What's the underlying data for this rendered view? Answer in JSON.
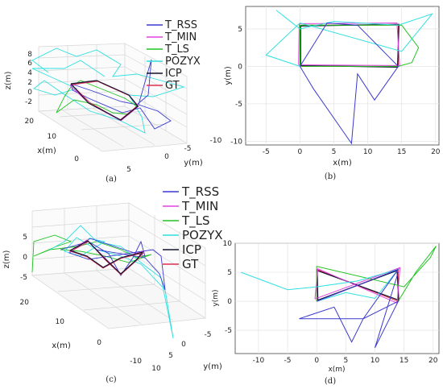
{
  "figure": {
    "captions": [
      "(a)",
      "(b)",
      "(c)",
      "(d)"
    ]
  },
  "legend_entries": [
    {
      "name": "T_RSS",
      "color": "#3a3ad0"
    },
    {
      "name": "T_MIN",
      "color": "#e040e0"
    },
    {
      "name": "T_LS",
      "color": "#22c422"
    },
    {
      "name": "POZYX",
      "color": "#2ee0e0"
    },
    {
      "name": "ICP",
      "color": "#151530"
    },
    {
      "name": "GT",
      "color": "#e03050"
    }
  ],
  "chart_data": [
    {
      "id": "a",
      "type": "line",
      "projection": "3d",
      "caption": "(a)",
      "xlabel": "x(m)",
      "ylabel": "y(m)",
      "zlabel": "z(m)",
      "x_ticks": [
        "20",
        "10",
        "0"
      ],
      "y_ticks": [
        "5",
        "0",
        "-5",
        "-10"
      ],
      "z_ticks": [
        "8",
        "6",
        "4",
        "2",
        "0",
        "-2"
      ],
      "legend": [
        "T_RSS",
        "T_MIN",
        "T_LS",
        "POZYX",
        "ICP",
        "GT"
      ],
      "legend_placement": "top-right",
      "grid": true
    },
    {
      "id": "b",
      "type": "line",
      "caption": "(b)",
      "xlabel": "x(m)",
      "ylabel": "y(m)",
      "xlim": [
        -8,
        20.5
      ],
      "ylim": [
        -10.5,
        8
      ],
      "x_ticks": [
        -5,
        0,
        5,
        10,
        15,
        20
      ],
      "y_ticks": [
        5,
        0,
        -5,
        -10
      ],
      "grid": true,
      "series": [
        {
          "name": "GT",
          "x": [
            0,
            14.5,
            14.5,
            0,
            0
          ],
          "y": [
            0,
            0,
            5.5,
            5.5,
            0
          ]
        },
        {
          "name": "ICP",
          "x": [
            0.1,
            14.4,
            14.6,
            0.1,
            0.1
          ],
          "y": [
            0.1,
            -0.1,
            5.6,
            5.4,
            0.1
          ]
        },
        {
          "name": "T_MIN",
          "x": [
            -0.2,
            14.7,
            14.3,
            -0.1,
            -0.2
          ],
          "y": [
            0.2,
            0.1,
            5.8,
            5.7,
            0.2
          ]
        },
        {
          "name": "T_LS",
          "x": [
            0,
            14.5,
            16.5,
            17.5,
            15,
            0,
            0
          ],
          "y": [
            0,
            0,
            0.5,
            2.5,
            5.5,
            5.5,
            0
          ]
        },
        {
          "name": "POZYX",
          "x": [
            -3.5,
            0,
            5,
            14.5,
            19.5,
            15,
            0,
            -5,
            0
          ],
          "y": [
            7.5,
            5,
            6,
            5.5,
            7,
            2,
            5.8,
            1.5,
            0
          ]
        },
        {
          "name": "T_RSS",
          "x": [
            0,
            2,
            7.6,
            8.5,
            11,
            14.5,
            8.5,
            4,
            0
          ],
          "y": [
            0,
            -3,
            -10.3,
            -1,
            -4.5,
            0,
            5.5,
            5.8,
            0
          ]
        }
      ]
    },
    {
      "id": "c",
      "type": "line",
      "projection": "3d",
      "caption": "(c)",
      "xlabel": "x(m)",
      "ylabel": "y(m)",
      "zlabel": "z(m)",
      "x_ticks": [
        "20",
        "10",
        "0",
        "-10"
      ],
      "y_ticks": [
        "10",
        "5",
        "0",
        "-5"
      ],
      "z_ticks": [
        "5",
        "0",
        "-5"
      ],
      "legend": [
        "T_RSS",
        "T_MIN",
        "T_LS",
        "POZYX",
        "ICP",
        "GT"
      ],
      "legend_placement": "top-right",
      "grid": true
    },
    {
      "id": "d",
      "type": "line",
      "caption": "(d)",
      "xlabel": "x(m)",
      "ylabel": "y(m)",
      "xlim": [
        -14,
        21
      ],
      "ylim": [
        -9,
        10
      ],
      "x_ticks": [
        -10,
        -5,
        0,
        5,
        10,
        15,
        20
      ],
      "y_ticks": [
        10,
        5,
        0,
        -5
      ],
      "grid": true,
      "series": [
        {
          "name": "GT",
          "x": [
            0,
            14,
            14,
            0,
            0
          ],
          "y": [
            0,
            5.5,
            0,
            5.5,
            0
          ]
        },
        {
          "name": "ICP",
          "x": [
            0.2,
            13.8,
            14.1,
            0.1,
            0.2
          ],
          "y": [
            0.2,
            5.3,
            0.2,
            5.3,
            0.2
          ]
        },
        {
          "name": "T_MIN",
          "x": [
            -0.3,
            14.3,
            13.8,
            0.2,
            -0.3
          ],
          "y": [
            0.4,
            5.8,
            -0.3,
            5.6,
            0.4
          ]
        },
        {
          "name": "T_LS",
          "x": [
            14,
            17,
            20.5,
            19.5,
            15,
            0,
            0
          ],
          "y": [
            0,
            5,
            9.5,
            7.5,
            2.5,
            6,
            0
          ]
        },
        {
          "name": "POZYX",
          "x": [
            -13,
            -5,
            0,
            7,
            14,
            10,
            5,
            0
          ],
          "y": [
            5,
            2,
            2.5,
            3.5,
            5.5,
            0.5,
            1.5,
            0
          ]
        },
        {
          "name": "T_RSS",
          "x": [
            0,
            14,
            8,
            6,
            3,
            -3,
            8,
            14,
            10,
            14
          ],
          "y": [
            0,
            5.5,
            -3,
            -7,
            -1,
            -3,
            -3,
            0,
            -8,
            5
          ]
        }
      ]
    }
  ]
}
